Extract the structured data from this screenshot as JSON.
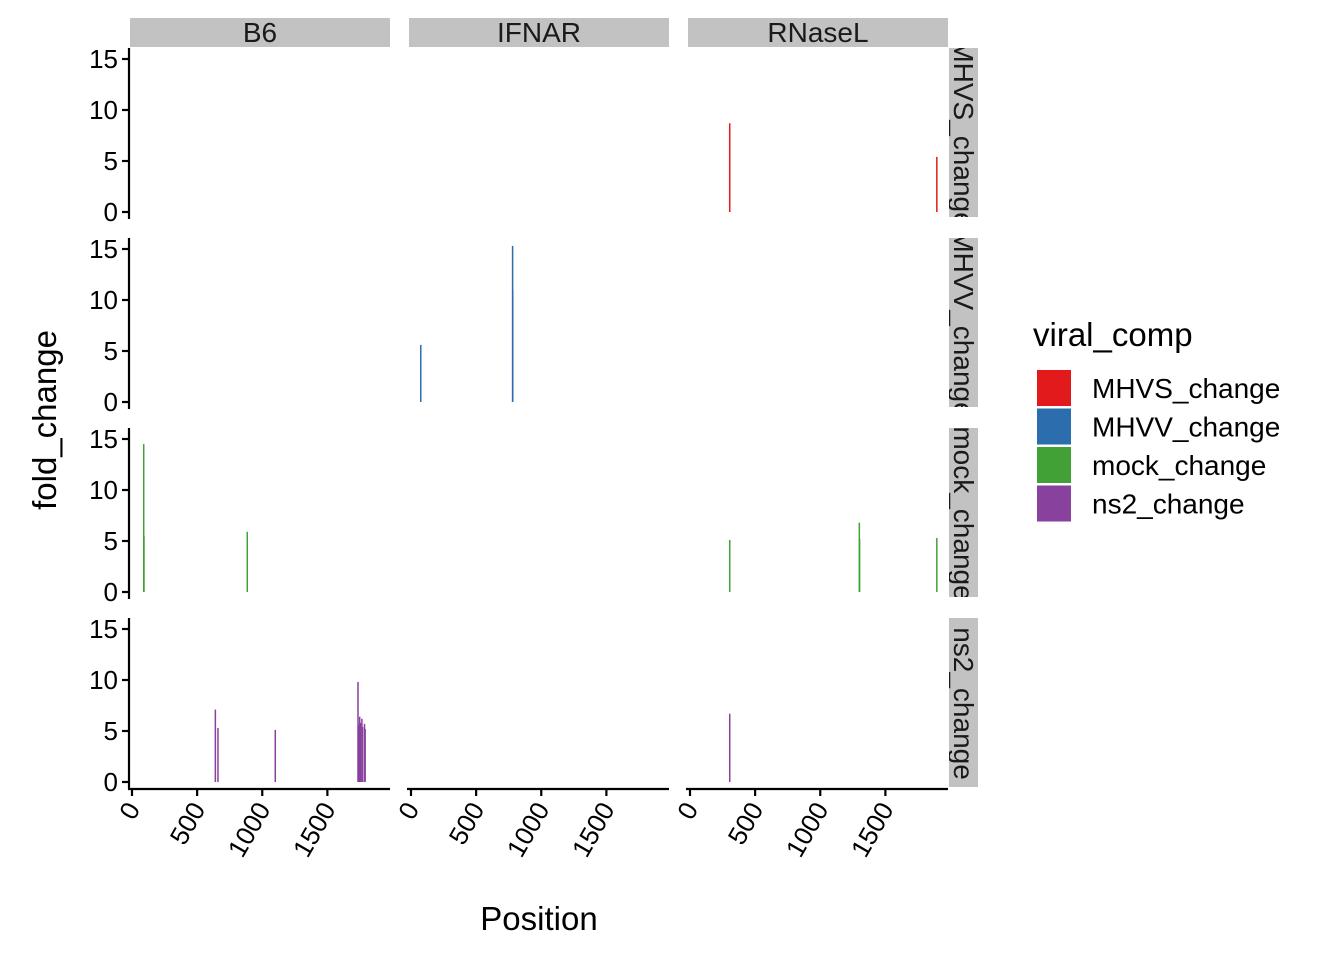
{
  "chart_data": {
    "type": "bar",
    "xlabel": "Position",
    "ylabel": "fold_change",
    "x_range": [
      0,
      1950
    ],
    "ylim": [
      0,
      16
    ],
    "x_ticks": [
      0,
      500,
      1000,
      1500
    ],
    "y_ticks": [
      0,
      5,
      10,
      15
    ],
    "columns": [
      "B6",
      "IFNAR",
      "RNaseL"
    ],
    "rows": [
      {
        "key": "MHVS_change",
        "strip_label": "MHVS_change"
      },
      {
        "key": "MHVV_change",
        "strip_label": "MHVV_change"
      },
      {
        "key": "mock_change",
        "strip_label": "mock_change"
      },
      {
        "key": "ns2_change",
        "strip_label": "ns2_change"
      }
    ],
    "legend": {
      "title": "viral_comp",
      "items": [
        {
          "label": "MHVS_change",
          "color": "#E31A1C"
        },
        {
          "label": "MHVV_change",
          "color": "#2C6DAE"
        },
        {
          "label": "mock_change",
          "color": "#41A136"
        },
        {
          "label": "ns2_change",
          "color": "#88419D"
        }
      ]
    },
    "series": [
      {
        "name": "MHVS_change",
        "column": "RNaseL",
        "points": [
          {
            "x": 305,
            "y": 8.7
          },
          {
            "x": 1895,
            "y": 5.4
          }
        ]
      },
      {
        "name": "MHVV_change",
        "column": "IFNAR",
        "points": [
          {
            "x": 75,
            "y": 5.6
          },
          {
            "x": 780,
            "y": 15.3
          },
          {
            "x": 781,
            "y": 11.0
          }
        ]
      },
      {
        "name": "mock_change",
        "column": "B6",
        "points": [
          {
            "x": 90,
            "y": 14.5
          },
          {
            "x": 92,
            "y": 5.5
          },
          {
            "x": 885,
            "y": 5.9
          }
        ]
      },
      {
        "name": "mock_change",
        "column": "RNaseL",
        "points": [
          {
            "x": 305,
            "y": 5.1
          },
          {
            "x": 1300,
            "y": 6.8
          },
          {
            "x": 1302,
            "y": 5.2
          },
          {
            "x": 1895,
            "y": 5.3
          }
        ]
      },
      {
        "name": "ns2_change",
        "column": "B6",
        "points": [
          {
            "x": 640,
            "y": 7.1
          },
          {
            "x": 660,
            "y": 5.3
          },
          {
            "x": 1100,
            "y": 5.1
          },
          {
            "x": 1735,
            "y": 9.8
          },
          {
            "x": 1740,
            "y": 5.6
          },
          {
            "x": 1748,
            "y": 6.4
          },
          {
            "x": 1755,
            "y": 5.8
          },
          {
            "x": 1765,
            "y": 6.2
          },
          {
            "x": 1770,
            "y": 5.4
          },
          {
            "x": 1785,
            "y": 5.7
          },
          {
            "x": 1790,
            "y": 5.2
          }
        ]
      },
      {
        "name": "ns2_change",
        "column": "RNaseL",
        "points": [
          {
            "x": 305,
            "y": 6.7
          }
        ]
      }
    ]
  }
}
